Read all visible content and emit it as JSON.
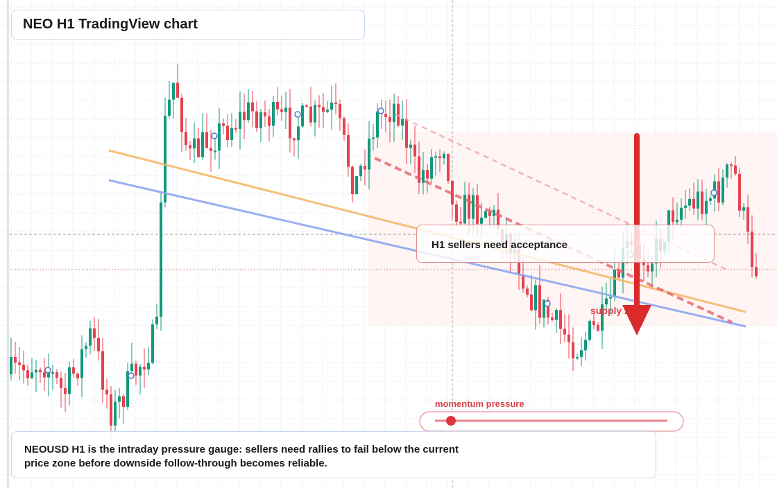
{
  "header": {
    "title": "NEO H1 TradingView chart"
  },
  "callout": "H1 sellers need acceptance",
  "zone_label": "supply zone",
  "gauge": {
    "label": "momentum pressure"
  },
  "description": "NEOUSD H1 is the intraday pressure gauge: sellers need rallies to fail below the current price zone before downside follow-through becomes reliable."
}
